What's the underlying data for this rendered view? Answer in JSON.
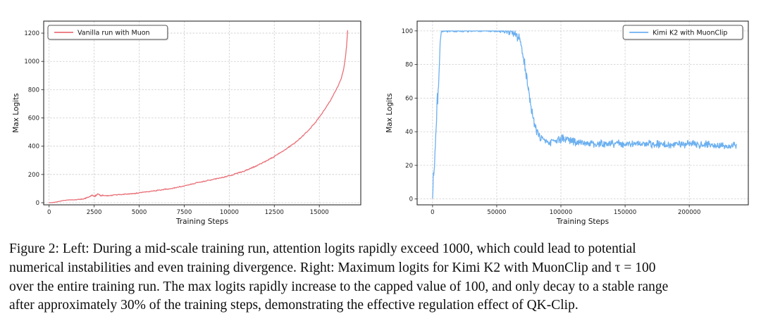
{
  "caption": {
    "lines": [
      "Figure 2: Left: During a mid-scale training run, attention logits rapidly exceed 1000, which could lead to potential",
      "numerical instabilities and even training divergence. Right: Maximum logits for Kimi K2 with MuonClip and τ = 100",
      "over the entire training run. The max logits rapidly increase to the capped value of 100, and only decay to a stable range",
      "after approximately 30% of the training steps, demonstrating the effective regulation effect of QK-Clip."
    ]
  },
  "style": {
    "grid_color": "#cccccc",
    "spine_color": "#2b2b2b",
    "tick_color": "#333333",
    "background": "#ffffff"
  },
  "chart_data": [
    {
      "type": "line",
      "panel": "left",
      "title": "",
      "xlabel": "Training Steps",
      "ylabel": "Max Logits",
      "xlim": [
        -300,
        17300
      ],
      "ylim": [
        -15,
        1285
      ],
      "xticks": [
        0,
        2500,
        5000,
        7500,
        10000,
        12500,
        15000
      ],
      "yticks": [
        0,
        200,
        400,
        600,
        800,
        1000,
        1200
      ],
      "grid": true,
      "legend": {
        "label": "Vanilla run with Muon",
        "position": "upper-left"
      },
      "series": [
        {
          "name": "Vanilla run with Muon",
          "color": "#e97179",
          "stroke_width": 1.3,
          "samples": 560,
          "seed": 3,
          "clamp_min": 0,
          "cap": null,
          "anchors": [
            [
              0,
              0
            ],
            [
              250,
              2
            ],
            [
              500,
              8
            ],
            [
              800,
              16
            ],
            [
              1100,
              20
            ],
            [
              1500,
              21
            ],
            [
              1900,
              26
            ],
            [
              2200,
              40
            ],
            [
              2400,
              52
            ],
            [
              2550,
              46
            ],
            [
              2700,
              62
            ],
            [
              2850,
              50
            ],
            [
              3000,
              54
            ],
            [
              3200,
              48
            ],
            [
              3500,
              53
            ],
            [
              3800,
              56
            ],
            [
              4100,
              59
            ],
            [
              4400,
              62
            ],
            [
              4700,
              65
            ],
            [
              5000,
              70
            ],
            [
              5300,
              75
            ],
            [
              5600,
              80
            ],
            [
              6000,
              87
            ],
            [
              6400,
              94
            ],
            [
              6800,
              101
            ],
            [
              7200,
              111
            ],
            [
              7600,
              123
            ],
            [
              8000,
              135
            ],
            [
              8400,
              146
            ],
            [
              8800,
              157
            ],
            [
              9200,
              167
            ],
            [
              9600,
              178
            ],
            [
              10000,
              190
            ],
            [
              10400,
              206
            ],
            [
              10800,
              223
            ],
            [
              11200,
              243
            ],
            [
              11600,
              266
            ],
            [
              12000,
              292
            ],
            [
              12400,
              320
            ],
            [
              12800,
              351
            ],
            [
              13200,
              383
            ],
            [
              13600,
              420
            ],
            [
              14000,
              463
            ],
            [
              14400,
              513
            ],
            [
              14800,
              571
            ],
            [
              15200,
              641
            ],
            [
              15600,
              720
            ],
            [
              16000,
              815
            ],
            [
              16200,
              872
            ],
            [
              16350,
              945
            ],
            [
              16450,
              1030
            ],
            [
              16520,
              1120
            ],
            [
              16570,
              1220
            ]
          ],
          "noise": [
            [
              0,
              0.6
            ],
            [
              1400,
              1.5
            ],
            [
              2100,
              5
            ],
            [
              2800,
              7
            ],
            [
              3300,
              4.5
            ],
            [
              5000,
              4
            ],
            [
              7000,
              4.5
            ],
            [
              9000,
              4
            ],
            [
              11000,
              5
            ],
            [
              13000,
              5
            ],
            [
              15000,
              4
            ],
            [
              16570,
              2.5
            ]
          ]
        }
      ]
    },
    {
      "type": "line",
      "panel": "right",
      "title": "",
      "xlabel": "Training Steps",
      "ylabel": "Max Logits",
      "xlim": [
        -12000,
        246000
      ],
      "ylim": [
        -3.5,
        105.8
      ],
      "xticks": [
        0,
        50000,
        100000,
        150000,
        200000
      ],
      "yticks": [
        0,
        20,
        40,
        60,
        80,
        100
      ],
      "grid": true,
      "legend": {
        "label": "Kimi K2 with MuonClip",
        "position": "upper-right"
      },
      "series": [
        {
          "name": "Kimi K2 with MuonClip",
          "color": "#6cb0f0",
          "stroke_width": 1.3,
          "samples": 760,
          "seed": 9,
          "clamp_min": 0,
          "cap": 100,
          "anchors": [
            [
              0,
              0
            ],
            [
              350,
              7
            ],
            [
              600,
              14
            ],
            [
              900,
              16
            ],
            [
              1200,
              15
            ],
            [
              1600,
              21
            ],
            [
              2000,
              28
            ],
            [
              2400,
              35
            ],
            [
              2800,
              42
            ],
            [
              3200,
              49
            ],
            [
              3500,
              57
            ],
            [
              3700,
              61
            ],
            [
              3900,
              56
            ],
            [
              4200,
              60
            ],
            [
              4600,
              67
            ],
            [
              5000,
              74
            ],
            [
              5400,
              82
            ],
            [
              5800,
              90
            ],
            [
              6200,
              96
            ],
            [
              6600,
              99
            ],
            [
              7200,
              100
            ],
            [
              30000,
              100
            ],
            [
              55000,
              100
            ],
            [
              58000,
              99.5
            ],
            [
              60500,
              99
            ],
            [
              62500,
              98.5
            ],
            [
              64500,
              98
            ],
            [
              66000,
              97
            ],
            [
              67500,
              95
            ],
            [
              69000,
              91
            ],
            [
              70500,
              86
            ],
            [
              72000,
              79
            ],
            [
              73500,
              71
            ],
            [
              75000,
              63
            ],
            [
              76500,
              56
            ],
            [
              78000,
              50
            ],
            [
              79500,
              45
            ],
            [
              81000,
              41
            ],
            [
              82500,
              38.5
            ],
            [
              84000,
              36.5
            ],
            [
              86000,
              35
            ],
            [
              88000,
              34.5
            ],
            [
              90000,
              34
            ],
            [
              93000,
              33.5
            ],
            [
              96000,
              34.2
            ],
            [
              99000,
              35.6
            ],
            [
              102000,
              36.2
            ],
            [
              105000,
              35.5
            ],
            [
              108000,
              34.6
            ],
            [
              112000,
              34
            ],
            [
              116000,
              33.6
            ],
            [
              120000,
              33.2
            ],
            [
              125000,
              32.8
            ],
            [
              130000,
              33
            ],
            [
              136000,
              32.6
            ],
            [
              142000,
              33
            ],
            [
              148000,
              32.7
            ],
            [
              154000,
              33
            ],
            [
              160000,
              32.6
            ],
            [
              166000,
              32.9
            ],
            [
              172000,
              32.5
            ],
            [
              178000,
              32.8
            ],
            [
              184000,
              32.4
            ],
            [
              190000,
              32.7
            ],
            [
              196000,
              32.4
            ],
            [
              202000,
              32.6
            ],
            [
              208000,
              32.2
            ],
            [
              214000,
              32.3
            ],
            [
              220000,
              31.9
            ],
            [
              226000,
              31.8
            ],
            [
              232000,
              31.6
            ],
            [
              237000,
              31.5
            ]
          ],
          "noise": [
            [
              0,
              1.5
            ],
            [
              1500,
              4
            ],
            [
              3500,
              5
            ],
            [
              5500,
              4
            ],
            [
              7000,
              1.2
            ],
            [
              20000,
              0.9
            ],
            [
              50000,
              0.9
            ],
            [
              56000,
              1.6
            ],
            [
              62000,
              2.5
            ],
            [
              67000,
              3.5
            ],
            [
              72000,
              4.5
            ],
            [
              78000,
              4
            ],
            [
              83000,
              3.2
            ],
            [
              90000,
              2.6
            ],
            [
              100000,
              3
            ],
            [
              120000,
              2.6
            ],
            [
              160000,
              2.6
            ],
            [
              200000,
              2.6
            ],
            [
              237000,
              2.6
            ]
          ]
        }
      ]
    }
  ]
}
